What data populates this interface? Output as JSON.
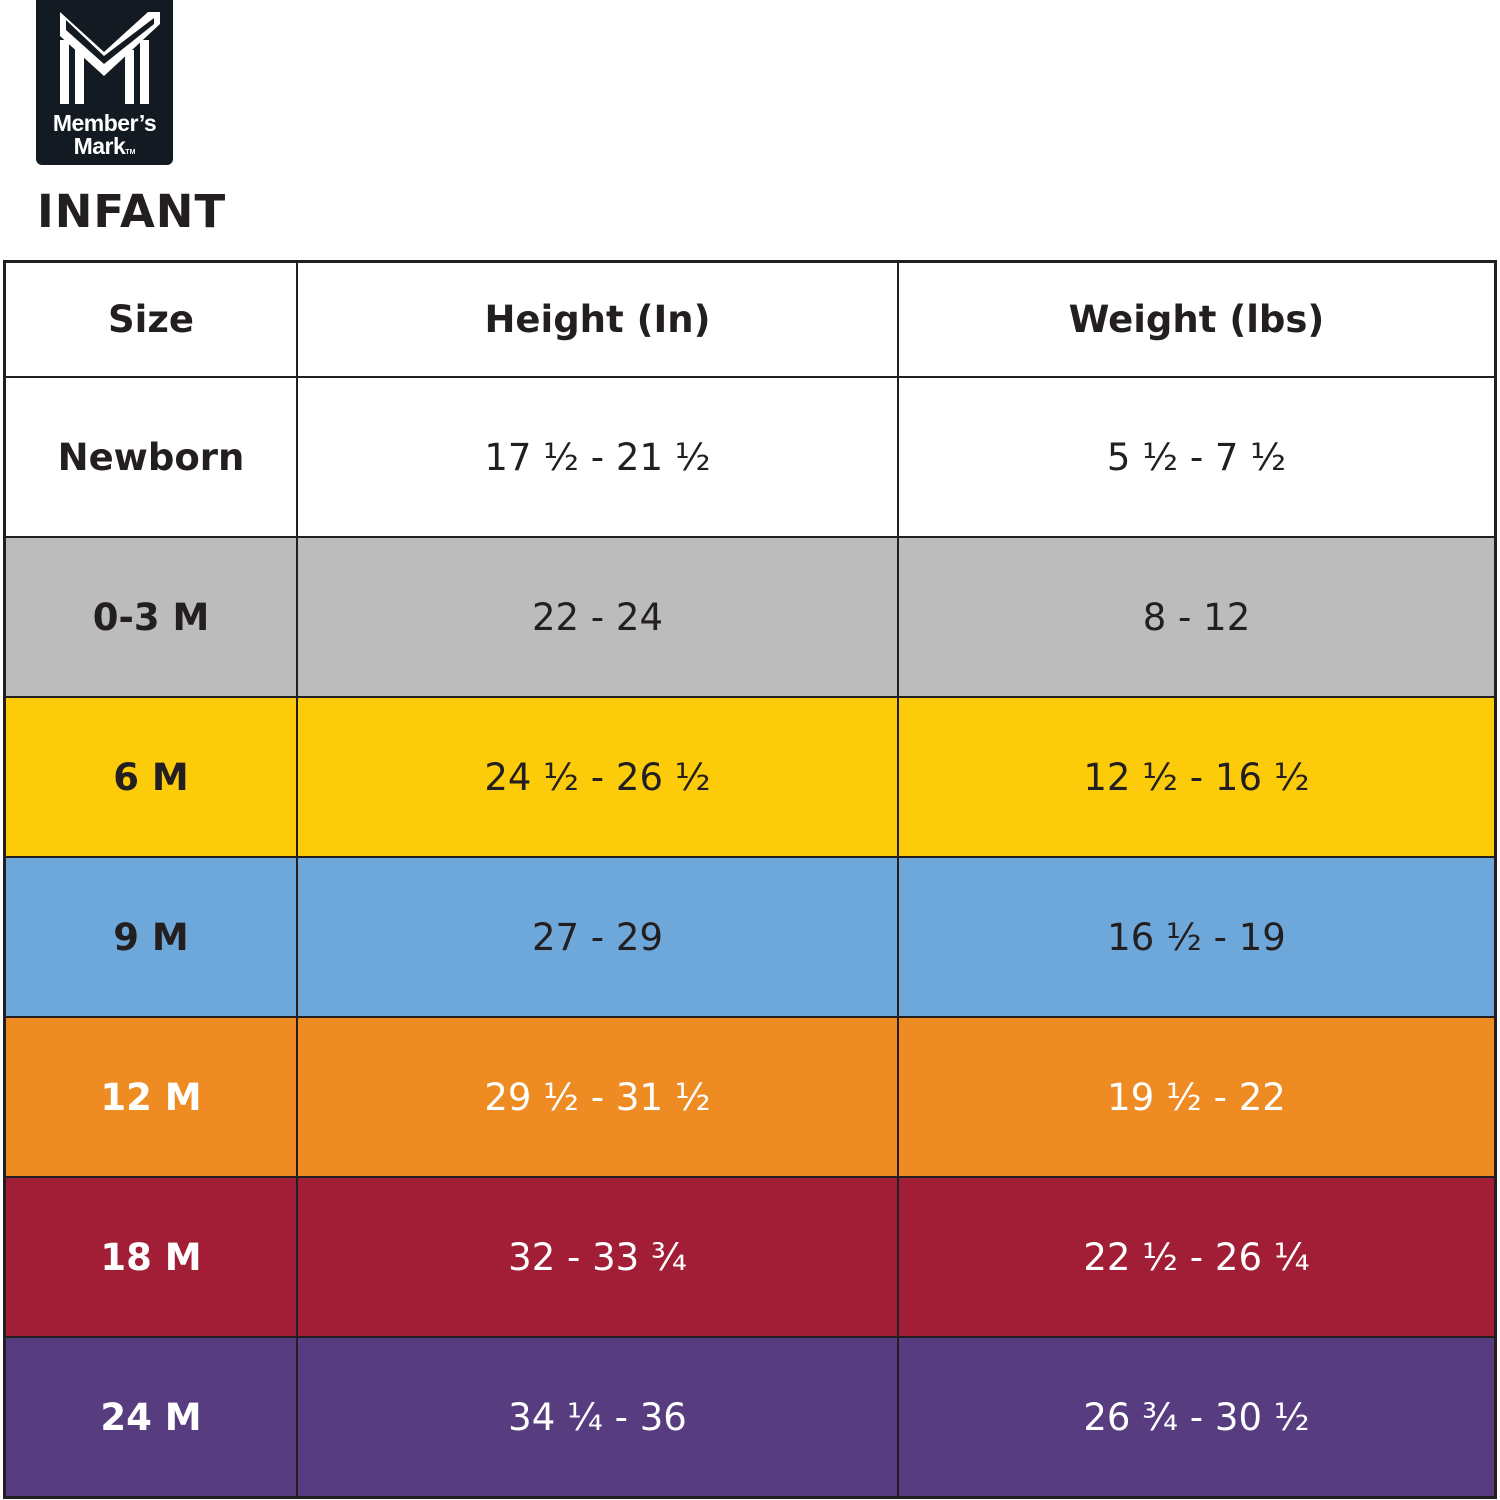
{
  "brand": {
    "name_line1": "Member’s",
    "name_line2": "Mark",
    "tm": "TM",
    "logo_color": "#141a22"
  },
  "title": "INFANT",
  "table": {
    "headers": [
      "Size",
      "Height (In)",
      "Weight (lbs)"
    ],
    "rows": [
      {
        "size": "Newborn",
        "height": "17 ½ - 21 ½",
        "weight": "5 ½ - 7 ½",
        "bg": "#ffffff",
        "fg": "#231f20"
      },
      {
        "size": "0-3 M",
        "height": "22 - 24",
        "weight": "8 - 12",
        "bg": "#bcbcbc",
        "fg": "#231f20"
      },
      {
        "size": "6 M",
        "height": "24 ½ - 26 ½",
        "weight": "12 ½ - 16 ½",
        "bg": "#fccc0a",
        "fg": "#231f20"
      },
      {
        "size": "9 M",
        "height": "27 - 29",
        "weight": "16 ½ - 19",
        "bg": "#6ea8da",
        "fg": "#231f20"
      },
      {
        "size": "12 M",
        "height": "29 ½ - 31 ½",
        "weight": "19 ½ - 22",
        "bg": "#ee8b22",
        "fg": "#ffffff"
      },
      {
        "size": "18 M",
        "height": "32 - 33 ¾",
        "weight": "22 ½ - 26 ¼",
        "bg": "#a21e36",
        "fg": "#ffffff"
      },
      {
        "size": "24 M",
        "height": "34 ¼ - 36",
        "weight": "26 ¾ - 30 ½",
        "bg": "#573c80",
        "fg": "#ffffff"
      }
    ]
  }
}
